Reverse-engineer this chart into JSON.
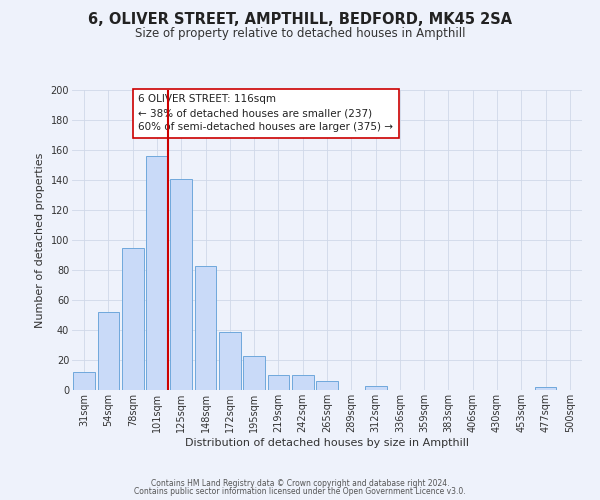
{
  "title": "6, OLIVER STREET, AMPTHILL, BEDFORD, MK45 2SA",
  "subtitle": "Size of property relative to detached houses in Ampthill",
  "xlabel": "Distribution of detached houses by size in Ampthill",
  "ylabel": "Number of detached properties",
  "bar_labels": [
    "31sqm",
    "54sqm",
    "78sqm",
    "101sqm",
    "125sqm",
    "148sqm",
    "172sqm",
    "195sqm",
    "219sqm",
    "242sqm",
    "265sqm",
    "289sqm",
    "312sqm",
    "336sqm",
    "359sqm",
    "383sqm",
    "406sqm",
    "430sqm",
    "453sqm",
    "477sqm",
    "500sqm"
  ],
  "bar_values": [
    12,
    52,
    95,
    156,
    141,
    83,
    39,
    23,
    10,
    10,
    6,
    0,
    3,
    0,
    0,
    0,
    0,
    0,
    0,
    2,
    0
  ],
  "bar_color": "#c9daf8",
  "bar_edge_color": "#6fa8dc",
  "grid_color": "#d0d8e8",
  "vline_color": "#cc0000",
  "annotation_title": "6 OLIVER STREET: 116sqm",
  "annotation_line1": "← 38% of detached houses are smaller (237)",
  "annotation_line2": "60% of semi-detached houses are larger (375) →",
  "annotation_box_color": "#ffffff",
  "annotation_box_edge": "#cc0000",
  "ylim": [
    0,
    200
  ],
  "yticks": [
    0,
    20,
    40,
    60,
    80,
    100,
    120,
    140,
    160,
    180,
    200
  ],
  "footer1": "Contains HM Land Registry data © Crown copyright and database right 2024.",
  "footer2": "Contains public sector information licensed under the Open Government Licence v3.0.",
  "bg_color": "#eef2fb",
  "title_fontsize": 10.5,
  "subtitle_fontsize": 8.5,
  "ylabel_fontsize": 8,
  "xlabel_fontsize": 8,
  "tick_fontsize": 7,
  "annotation_fontsize": 7.5,
  "footer_fontsize": 5.5
}
